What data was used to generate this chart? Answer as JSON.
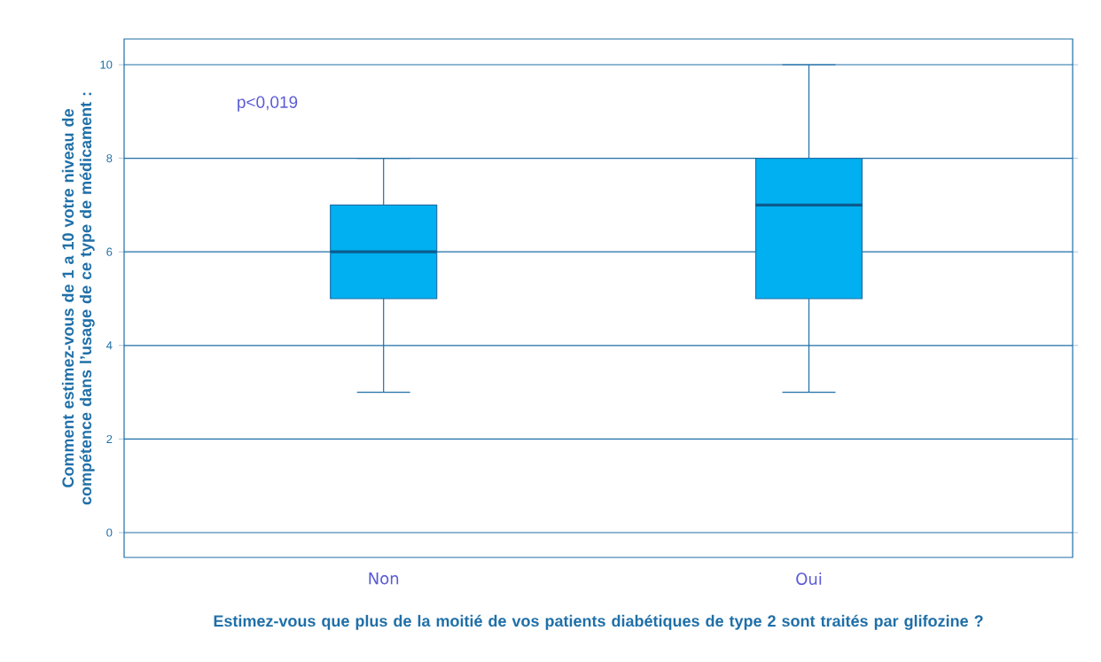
{
  "chart_data": {
    "type": "box",
    "xlabel": "Estimez-vous que plus de la moitié de vos patients diabétiques de type 2 sont traités par glifozine ?",
    "ylabel": "Comment estimez-vous de 1 a 10 votre niveau de compétence dans l’usage de ce type de médicament :",
    "categories": [
      "Non",
      "Oui"
    ],
    "boxes": [
      {
        "low": 3,
        "q1": 5,
        "median": 6,
        "q3": 7,
        "high": 8
      },
      {
        "low": 3,
        "q1": 5,
        "median": 7,
        "q3": 8,
        "high": 10
      }
    ],
    "color": "#00b0f0",
    "ylim": [
      -0.53,
      10.55
    ],
    "yticks": [
      0,
      2,
      4,
      6,
      8,
      10
    ],
    "grid": "y",
    "annotations": [
      "p<0,019"
    ]
  }
}
